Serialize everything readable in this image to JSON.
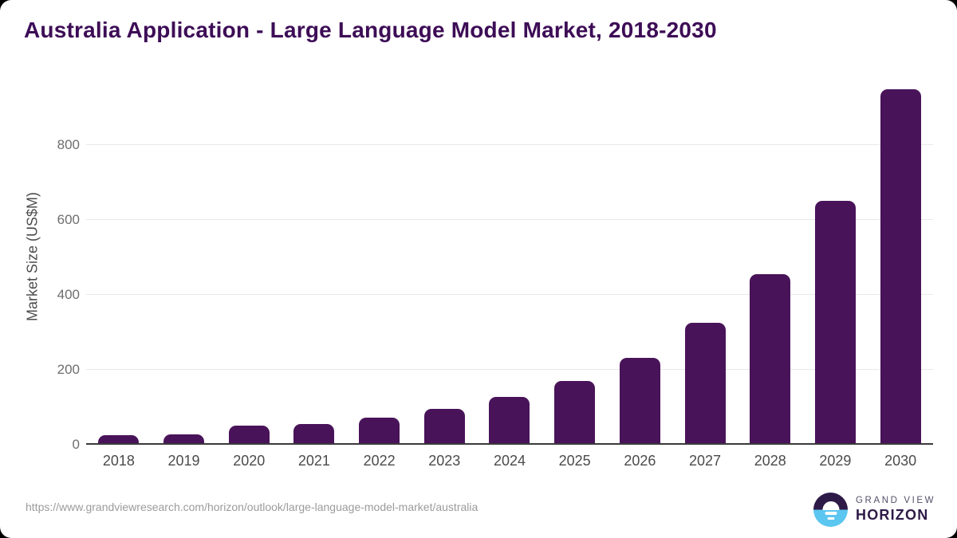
{
  "header": {
    "title": "Australia Application - Large Language Model Market, 2018-2030"
  },
  "chart_data": {
    "type": "bar",
    "title": "Australia Application - Large Language Model Market, 2018-2030",
    "categories": [
      "2018",
      "2019",
      "2020",
      "2021",
      "2022",
      "2023",
      "2024",
      "2025",
      "2026",
      "2027",
      "2028",
      "2029",
      "2030"
    ],
    "values": [
      25,
      27,
      52,
      56,
      73,
      96,
      128,
      171,
      233,
      326,
      456,
      652,
      950
    ],
    "xlabel": "",
    "ylabel": "Market Size (US$M)",
    "yticks": [
      0,
      200,
      400,
      600,
      800
    ],
    "ylim": [
      0,
      960
    ],
    "grid": "horizontal",
    "legend": "none",
    "bar_color": "#491359"
  },
  "colors": {
    "title_text": "#3d0d56",
    "bar": "#491359",
    "axis_line": "#3a3a3a",
    "gridline": "#e8e8e8",
    "tick_label": "#6e6e6e",
    "year_label": "#4b4b4b",
    "source_text": "#9b9b9b",
    "logo_dark_purple": "#2e1a47",
    "logo_light_blue": "#5bc6f0",
    "card_background": "#ffffff",
    "page_background": "#000000"
  },
  "footer": {
    "source_url": "https://www.grandviewresearch.com/horizon/outlook/large-language-model-market/australia",
    "logo": {
      "top": "GRAND VIEW",
      "bottom": "HORIZON"
    }
  }
}
